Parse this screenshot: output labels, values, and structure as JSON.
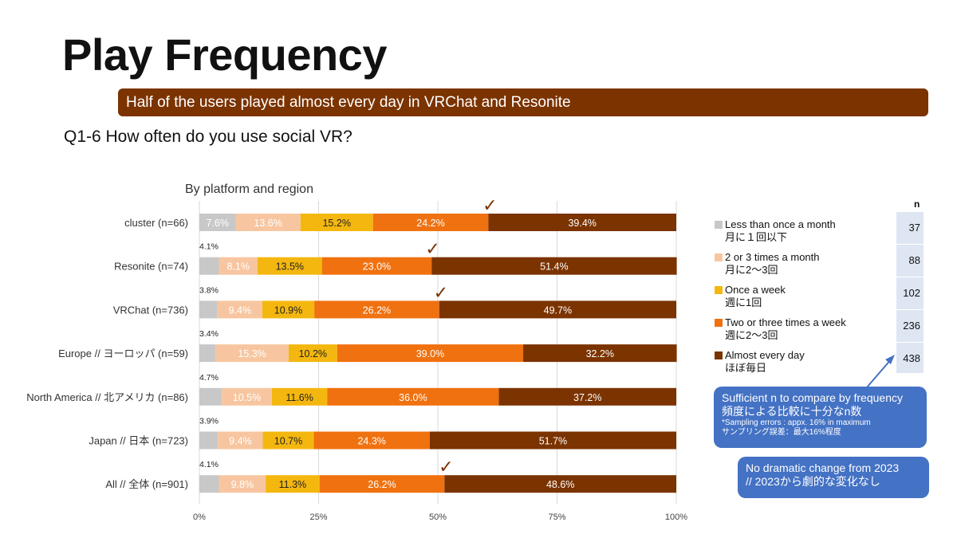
{
  "page": {
    "title": "Play Frequency",
    "banner": "Half of the users played almost every day in VRChat and Resonite",
    "question": "Q1-6 How often do you use social VR?",
    "subtitle": "By platform and region"
  },
  "chart_data": {
    "type": "bar",
    "orientation": "horizontal-stacked-100",
    "title": "By platform and region",
    "categories": [
      "cluster (n=66)",
      "Resonite (n=74)",
      "VRChat (n=736)",
      "Europe // ヨーロッパ (n=59)",
      "North America // 北アメリカ (n=86)",
      "Japan // 日本 (n=723)",
      "All // 全体 (n=901)"
    ],
    "series": [
      {
        "name": "Less than once a month",
        "name_ja": "月に１回以下",
        "color": "#c8c8c8",
        "values": [
          7.6,
          4.1,
          3.8,
          3.4,
          4.7,
          3.9,
          4.1
        ],
        "labels": [
          "7.6%",
          "4.1%",
          "3.8%",
          "3.4%",
          "4.7%",
          "3.9%",
          "4.1%"
        ],
        "label_outside": [
          false,
          true,
          true,
          true,
          true,
          true,
          true
        ]
      },
      {
        "name": "2 or 3 times a month",
        "name_ja": "月に2〜3回",
        "color": "#f7c6a0",
        "values": [
          13.6,
          8.1,
          9.4,
          15.3,
          10.5,
          9.4,
          9.8
        ],
        "labels": [
          "13.6%",
          "8.1%",
          "9.4%",
          "15.3%",
          "10.5%",
          "9.4%",
          "9.8%"
        ]
      },
      {
        "name": "Once a week",
        "name_ja": "週に1回",
        "color": "#f4b70f",
        "values": [
          15.2,
          13.5,
          10.9,
          10.2,
          11.6,
          10.7,
          11.3
        ],
        "labels": [
          "15.2%",
          "13.5%",
          "10.9%",
          "10.2%",
          "11.6%",
          "10.7%",
          "11.3%"
        ]
      },
      {
        "name": "Two or three times a week",
        "name_ja": "週に2〜3回",
        "color": "#f0710f",
        "values": [
          24.2,
          23.0,
          26.2,
          39.0,
          36.0,
          24.3,
          26.2
        ],
        "labels": [
          "24.2%",
          "23.0%",
          "26.2%",
          "39.0%",
          "36.0%",
          "24.3%",
          "26.2%"
        ]
      },
      {
        "name": "Almost every day",
        "name_ja": "ほぼ毎日",
        "color": "#7b3300",
        "values": [
          39.4,
          51.4,
          49.7,
          32.2,
          37.2,
          51.7,
          48.6
        ],
        "labels": [
          "39.4%",
          "51.4%",
          "49.7%",
          "32.2%",
          "37.2%",
          "51.7%",
          "48.6%"
        ]
      }
    ],
    "checkmarks": [
      true,
      true,
      true,
      false,
      false,
      false,
      true
    ],
    "checkmark_symbol": "✓",
    "xlim": [
      0,
      100
    ],
    "x_ticks": [
      0,
      25,
      50,
      75,
      100
    ],
    "x_tick_labels": [
      "0%",
      "25%",
      "50%",
      "75%",
      "100%"
    ],
    "grid": true,
    "legend_position": "right"
  },
  "n_table": {
    "header": "n",
    "values": [
      "37",
      "88",
      "102",
      "236",
      "438"
    ]
  },
  "callouts": {
    "first": {
      "line1": "Sufficient n to compare by frequency",
      "line2": "頻度による比較に十分なn数",
      "line3": "*Sampling errors : appx. 16% in maximum",
      "line4": "サンプリング誤差：最大16%程度"
    },
    "second": {
      "line1": "No dramatic change from 2023",
      "line2": "// 2023から劇的な変化なし"
    }
  },
  "colors": {
    "banner": "#7b3300",
    "callout": "#4472c4",
    "n_column": "#dfe6f3",
    "checkmark": "#7b3300"
  }
}
